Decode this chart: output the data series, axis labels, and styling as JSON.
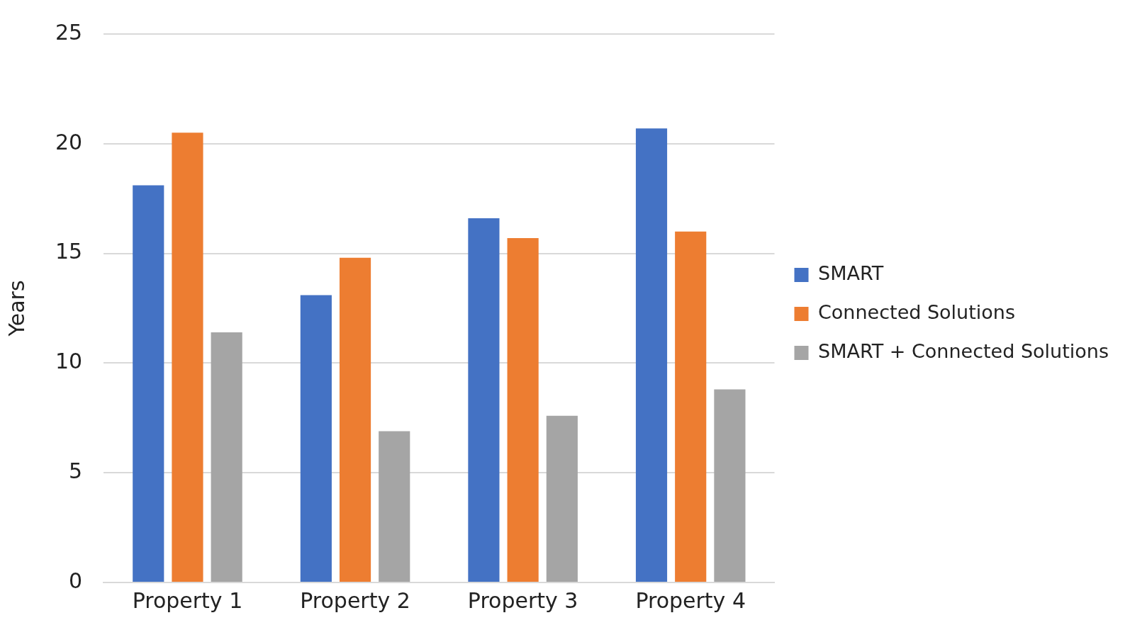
{
  "chart_data": {
    "type": "bar",
    "ylabel": "Years",
    "categories": [
      "Property 1",
      "Property 2",
      "Property 3",
      "Property 4"
    ],
    "series": [
      {
        "name": "SMART",
        "color": "#4472c4",
        "values": [
          18.1,
          13.1,
          16.6,
          20.7
        ]
      },
      {
        "name": "Connected Solutions",
        "color": "#ed7d31",
        "values": [
          20.5,
          14.8,
          15.7,
          16.0
        ]
      },
      {
        "name": "SMART + Connected Solutions",
        "color": "#a5a5a5",
        "values": [
          11.4,
          6.9,
          7.6,
          8.8
        ]
      }
    ],
    "ylim": [
      0,
      25
    ],
    "yticks": [
      0,
      5,
      10,
      15,
      20,
      25
    ],
    "grid": "y",
    "legend": "right"
  }
}
